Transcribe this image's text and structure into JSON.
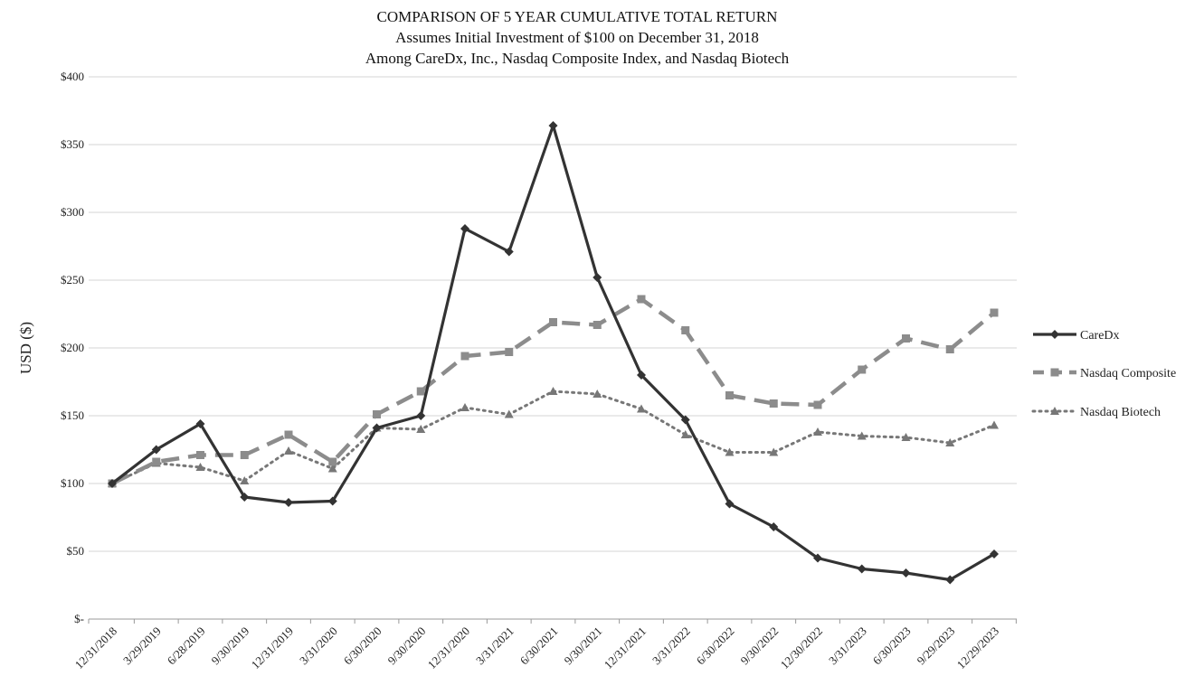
{
  "chart_data": {
    "type": "line",
    "title": [
      "COMPARISON OF 5 YEAR CUMULATIVE TOTAL RETURN",
      "Assumes Initial Investment of $100 on December 31, 2018",
      "Among CareDx, Inc., Nasdaq Composite Index, and Nasdaq Biotech"
    ],
    "ylabel": "USD ($)",
    "ylim": [
      0,
      400
    ],
    "yticks": [
      0,
      50,
      100,
      150,
      200,
      250,
      300,
      350,
      400
    ],
    "ytick_labels": [
      "$-",
      "$50",
      "$100",
      "$150",
      "$200",
      "$250",
      "$300",
      "$350",
      "$400"
    ],
    "categories": [
      "12/31/2018",
      "3/29/2019",
      "6/28/2019",
      "9/30/2019",
      "12/31/2019",
      "3/31/2020",
      "6/30/2020",
      "9/30/2020",
      "12/31/2020",
      "3/31/2021",
      "6/30/2021",
      "9/30/2021",
      "12/31/2021",
      "3/31/2022",
      "6/30/2022",
      "9/30/2022",
      "12/30/2022",
      "3/31/2023",
      "6/30/2023",
      "9/29/2023",
      "12/29/2023"
    ],
    "grid": true,
    "legend_position": "right",
    "series": [
      {
        "name": "CareDx",
        "color": "#333333",
        "style": "solid",
        "marker": "diamond",
        "values": [
          100,
          125,
          144,
          90,
          86,
          87,
          141,
          150,
          288,
          271,
          364,
          252,
          180,
          147,
          85,
          68,
          45,
          37,
          34,
          29,
          48
        ]
      },
      {
        "name": "Nasdaq Composite",
        "color": "#8c8c8c",
        "style": "dashed",
        "marker": "square",
        "values": [
          100,
          116,
          121,
          121,
          136,
          116,
          151,
          168,
          194,
          197,
          219,
          217,
          236,
          213,
          165,
          159,
          158,
          184,
          207,
          199,
          226
        ]
      },
      {
        "name": "Nasdaq Biotech",
        "color": "#777777",
        "style": "dotted",
        "marker": "triangle",
        "values": [
          100,
          115,
          112,
          102,
          124,
          111,
          141,
          140,
          156,
          151,
          168,
          166,
          155,
          136,
          123,
          123,
          138,
          135,
          134,
          130,
          143
        ]
      }
    ]
  }
}
